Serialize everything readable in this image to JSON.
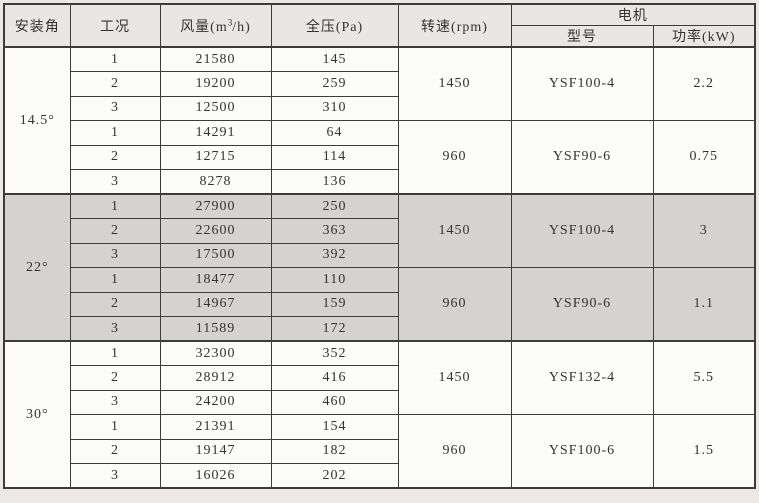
{
  "page": {
    "background_color": "#ebe8e5",
    "shaded_row_color": "#d5d3d0",
    "header_bg_color": "#e9e6e3",
    "border_color": "#3c3c3c",
    "text_color": "#333333"
  },
  "table": {
    "headers": {
      "angle": "安装角",
      "condition": "工况",
      "airflow_prefix": "风量(m",
      "airflow_sup": "3",
      "airflow_suffix": "/h)",
      "pressure": "全压(Pa)",
      "speed": "转速(rpm)",
      "motor": "电机",
      "model": "型号",
      "power": "功率(kW)"
    },
    "sections": [
      {
        "angle": "14.5°",
        "shaded": false,
        "groups": [
          {
            "speed": "1450",
            "model": "YSF100-4",
            "power": "2.2",
            "rows": [
              {
                "condition": "1",
                "airflow": "21580",
                "pressure": "145"
              },
              {
                "condition": "2",
                "airflow": "19200",
                "pressure": "259"
              },
              {
                "condition": "3",
                "airflow": "12500",
                "pressure": "310"
              }
            ]
          },
          {
            "speed": "960",
            "model": "YSF90-6",
            "power": "0.75",
            "rows": [
              {
                "condition": "1",
                "airflow": "14291",
                "pressure": "64"
              },
              {
                "condition": "2",
                "airflow": "12715",
                "pressure": "114"
              },
              {
                "condition": "3",
                "airflow": "8278",
                "pressure": "136"
              }
            ]
          }
        ]
      },
      {
        "angle": "22°",
        "shaded": true,
        "groups": [
          {
            "speed": "1450",
            "model": "YSF100-4",
            "power": "3",
            "rows": [
              {
                "condition": "1",
                "airflow": "27900",
                "pressure": "250"
              },
              {
                "condition": "2",
                "airflow": "22600",
                "pressure": "363"
              },
              {
                "condition": "3",
                "airflow": "17500",
                "pressure": "392"
              }
            ]
          },
          {
            "speed": "960",
            "model": "YSF90-6",
            "power": "1.1",
            "rows": [
              {
                "condition": "1",
                "airflow": "18477",
                "pressure": "110"
              },
              {
                "condition": "2",
                "airflow": "14967",
                "pressure": "159"
              },
              {
                "condition": "3",
                "airflow": "11589",
                "pressure": "172"
              }
            ]
          }
        ]
      },
      {
        "angle": "30°",
        "shaded": false,
        "groups": [
          {
            "speed": "1450",
            "model": "YSF132-4",
            "power": "5.5",
            "rows": [
              {
                "condition": "1",
                "airflow": "32300",
                "pressure": "352"
              },
              {
                "condition": "2",
                "airflow": "28912",
                "pressure": "416"
              },
              {
                "condition": "3",
                "airflow": "24200",
                "pressure": "460"
              }
            ]
          },
          {
            "speed": "960",
            "model": "YSF100-6",
            "power": "1.5",
            "rows": [
              {
                "condition": "1",
                "airflow": "21391",
                "pressure": "154"
              },
              {
                "condition": "2",
                "airflow": "19147",
                "pressure": "182"
              },
              {
                "condition": "3",
                "airflow": "16026",
                "pressure": "202"
              }
            ]
          }
        ]
      }
    ]
  }
}
